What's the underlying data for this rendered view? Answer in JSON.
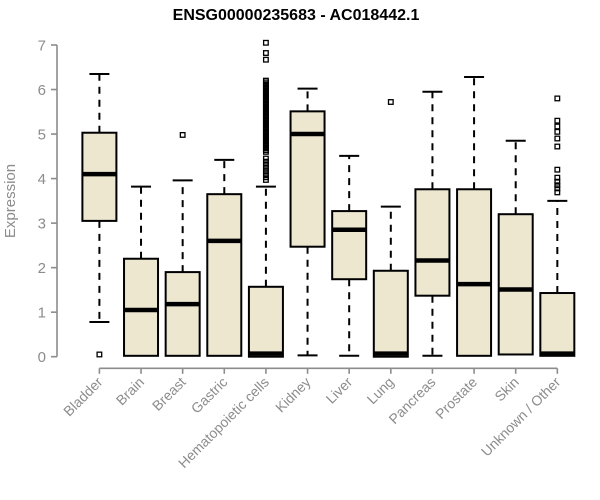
{
  "colors": {
    "background": "#FFFFFF",
    "box_fill": "#EDE7D0",
    "box_stroke": "#000000",
    "median_color": "#000000",
    "whisker_color": "#000000",
    "axis_color": "#8C8C8C",
    "title_color": "#000000"
  },
  "chart_data": {
    "type": "boxplot",
    "title": "ENSG00000235683 - AC018442.1",
    "xlabel": "",
    "ylabel": "Expression",
    "ylim": [
      0,
      7
    ],
    "yticks": [
      0,
      1,
      2,
      3,
      4,
      5,
      6,
      7
    ],
    "grid": false,
    "legend": "none",
    "categories": [
      "Bladder",
      "Brain",
      "Breast",
      "Gastric",
      "Hematopoietic cells",
      "Kidney",
      "Liver",
      "Lung",
      "Pancreas",
      "Prostate",
      "Skin",
      "Unknown / Other"
    ],
    "boxes": [
      {
        "category": "Bladder",
        "whisker_low": 0.78,
        "q1": 3.05,
        "median": 4.1,
        "q3": 5.03,
        "whisker_high": 6.35,
        "outliers": [
          0.05
        ]
      },
      {
        "category": "Brain",
        "whisker_low": 0.02,
        "q1": 0.02,
        "median": 1.05,
        "q3": 2.2,
        "whisker_high": 3.82,
        "outliers": []
      },
      {
        "category": "Breast",
        "whisker_low": 0.02,
        "q1": 0.02,
        "median": 1.18,
        "q3": 1.9,
        "whisker_high": 3.96,
        "outliers": [
          4.98
        ]
      },
      {
        "category": "Gastric",
        "whisker_low": 0.02,
        "q1": 0.02,
        "median": 2.6,
        "q3": 3.65,
        "whisker_high": 4.42,
        "outliers": []
      },
      {
        "category": "Hematopoietic cells",
        "whisker_low": 0.0,
        "q1": 0.0,
        "median": 0.07,
        "q3": 1.57,
        "whisker_high": 3.82,
        "outliers": [
          7.05,
          6.82,
          6.67,
          6.2,
          6.16,
          6.12,
          6.08,
          6.04,
          6.0,
          5.96,
          5.92,
          5.88,
          5.84,
          5.8,
          5.76,
          5.72,
          5.68,
          5.64,
          5.6,
          5.56,
          5.52,
          5.48,
          5.44,
          5.4,
          5.36,
          5.32,
          5.28,
          5.24,
          5.2,
          5.16,
          5.12,
          5.08,
          5.04,
          5.0,
          4.96,
          4.92,
          4.88,
          4.84,
          4.8,
          4.76,
          4.72,
          4.68,
          4.64,
          4.6,
          4.45,
          4.38,
          4.31,
          4.24,
          4.17,
          4.1,
          4.03,
          3.97
        ]
      },
      {
        "category": "Kidney",
        "whisker_low": 0.03,
        "q1": 2.47,
        "median": 5.0,
        "q3": 5.51,
        "whisker_high": 6.02,
        "outliers": []
      },
      {
        "category": "Liver",
        "whisker_low": 0.02,
        "q1": 1.74,
        "median": 2.85,
        "q3": 3.27,
        "whisker_high": 4.51,
        "outliers": []
      },
      {
        "category": "Lung",
        "whisker_low": 0.0,
        "q1": 0.0,
        "median": 0.07,
        "q3": 1.93,
        "whisker_high": 3.37,
        "outliers": [
          5.72
        ]
      },
      {
        "category": "Pancreas",
        "whisker_low": 0.02,
        "q1": 1.37,
        "median": 2.16,
        "q3": 3.76,
        "whisker_high": 5.95,
        "outliers": []
      },
      {
        "category": "Prostate",
        "whisker_low": 0.02,
        "q1": 0.02,
        "median": 1.63,
        "q3": 3.76,
        "whisker_high": 6.28,
        "outliers": []
      },
      {
        "category": "Skin",
        "whisker_low": 0.05,
        "q1": 0.05,
        "median": 1.51,
        "q3": 3.2,
        "whisker_high": 4.85,
        "outliers": []
      },
      {
        "category": "Unknown / Other",
        "whisker_low": 0.02,
        "q1": 0.02,
        "median": 0.07,
        "q3": 1.43,
        "whisker_high": 3.5,
        "outliers": [
          5.8,
          5.3,
          5.17,
          5.05,
          4.9,
          4.72,
          4.2,
          4.02,
          3.93,
          3.85,
          3.78,
          3.69
        ]
      }
    ]
  }
}
